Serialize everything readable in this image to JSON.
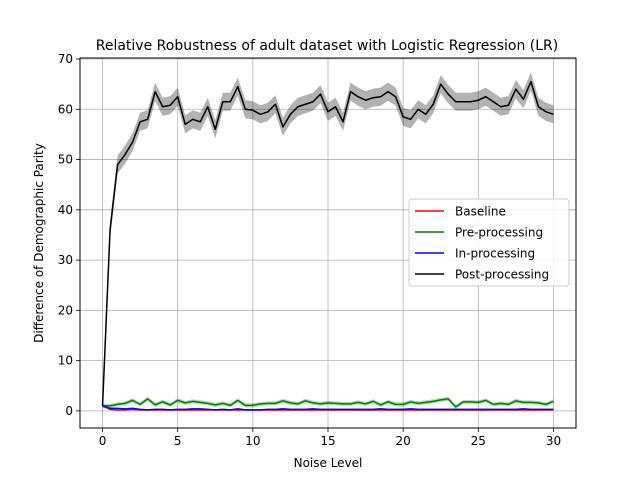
{
  "chart_data": {
    "type": "line",
    "title": "Relative Robustness of adult dataset with Logistic Regression (LR)",
    "xlabel": "Noise Level",
    "ylabel": "Difference of Demographic Parity",
    "xlim": [
      -1.5,
      31.5
    ],
    "ylim": [
      -3.4,
      70.2
    ],
    "x_ticks": [
      0,
      5,
      10,
      15,
      20,
      25,
      30
    ],
    "y_ticks": [
      0,
      10,
      20,
      30,
      40,
      50,
      60,
      70
    ],
    "grid": true,
    "legend_position": "center-right",
    "x": [
      0,
      0.5,
      1,
      1.5,
      2,
      2.5,
      3,
      3.5,
      4,
      4.5,
      5,
      5.5,
      6,
      6.5,
      7,
      7.5,
      8,
      8.5,
      9,
      9.5,
      10,
      10.5,
      11,
      11.5,
      12,
      12.5,
      13,
      13.5,
      14,
      14.5,
      15,
      15.5,
      16,
      16.5,
      17,
      17.5,
      18,
      18.5,
      19,
      19.5,
      20,
      20.5,
      21,
      21.5,
      22,
      22.5,
      23,
      23.5,
      24,
      24.5,
      25,
      25.5,
      26,
      26.5,
      27,
      27.5,
      28,
      28.5,
      29,
      29.5,
      30
    ],
    "series": [
      {
        "name": "Baseline",
        "color": "#ff0000",
        "band": 0,
        "values": [
          1.0,
          0.3,
          0.2,
          0.2,
          0.3,
          0.2,
          0.2,
          0.2,
          0.2,
          0.2,
          0.2,
          0.2,
          0.2,
          0.2,
          0.2,
          0.2,
          0.2,
          0.2,
          0.2,
          0.2,
          0.2,
          0.2,
          0.2,
          0.2,
          0.2,
          0.2,
          0.2,
          0.2,
          0.2,
          0.2,
          0.2,
          0.2,
          0.2,
          0.2,
          0.2,
          0.2,
          0.2,
          0.2,
          0.2,
          0.2,
          0.2,
          0.2,
          0.2,
          0.2,
          0.2,
          0.2,
          0.2,
          0.2,
          0.2,
          0.2,
          0.2,
          0.2,
          0.2,
          0.2,
          0.2,
          0.2,
          0.2,
          0.2,
          0.2,
          0.2,
          0.2
        ]
      },
      {
        "name": "Pre-processing",
        "color": "#008000",
        "band": 0.4,
        "values": [
          1.0,
          1.0,
          1.3,
          1.5,
          2.1,
          1.3,
          2.4,
          1.2,
          1.8,
          1.2,
          2.1,
          1.6,
          1.9,
          1.7,
          1.5,
          1.2,
          1.5,
          1.1,
          2.1,
          1.1,
          1.1,
          1.4,
          1.5,
          1.5,
          2.0,
          1.6,
          1.4,
          2.0,
          1.6,
          1.4,
          1.6,
          1.5,
          1.4,
          1.4,
          1.7,
          1.4,
          1.9,
          1.2,
          1.8,
          1.3,
          1.3,
          1.8,
          1.5,
          1.7,
          1.9,
          2.2,
          2.4,
          0.8,
          1.8,
          1.8,
          1.7,
          2.1,
          1.3,
          1.5,
          1.3,
          2.0,
          1.7,
          1.7,
          1.6,
          1.3,
          1.9
        ]
      },
      {
        "name": "In-processing",
        "color": "#0000ff",
        "band": 0.15,
        "values": [
          1.0,
          0.5,
          0.5,
          0.4,
          0.5,
          0.3,
          0.2,
          0.3,
          0.3,
          0.2,
          0.3,
          0.3,
          0.4,
          0.4,
          0.3,
          0.2,
          0.3,
          0.2,
          0.4,
          0.2,
          0.2,
          0.2,
          0.3,
          0.3,
          0.4,
          0.3,
          0.3,
          0.3,
          0.4,
          0.3,
          0.3,
          0.3,
          0.3,
          0.3,
          0.3,
          0.3,
          0.3,
          0.4,
          0.3,
          0.3,
          0.3,
          0.4,
          0.3,
          0.3,
          0.3,
          0.3,
          0.3,
          0.3,
          0.3,
          0.3,
          0.3,
          0.3,
          0.3,
          0.3,
          0.3,
          0.3,
          0.4,
          0.3,
          0.3,
          0.3,
          0.3
        ]
      },
      {
        "name": "Post-processing",
        "color": "#000000",
        "band": 1.8,
        "values": [
          1.0,
          36.0,
          49.0,
          51.0,
          53.5,
          57.5,
          58.0,
          63.5,
          60.5,
          60.8,
          62.5,
          57.0,
          58.0,
          57.5,
          60.5,
          56.0,
          61.5,
          61.5,
          64.5,
          60.0,
          59.8,
          59.0,
          59.5,
          61.0,
          56.5,
          59.0,
          60.5,
          61.0,
          61.5,
          63.0,
          59.5,
          60.5,
          57.5,
          63.5,
          62.5,
          61.8,
          62.3,
          62.5,
          63.5,
          62.5,
          58.5,
          58.0,
          60.0,
          59.0,
          61.0,
          65.0,
          63.0,
          61.5,
          61.5,
          61.5,
          61.8,
          62.5,
          61.5,
          60.5,
          60.8,
          64.0,
          62.0,
          65.5,
          60.5,
          59.5,
          59.0
        ]
      }
    ]
  }
}
